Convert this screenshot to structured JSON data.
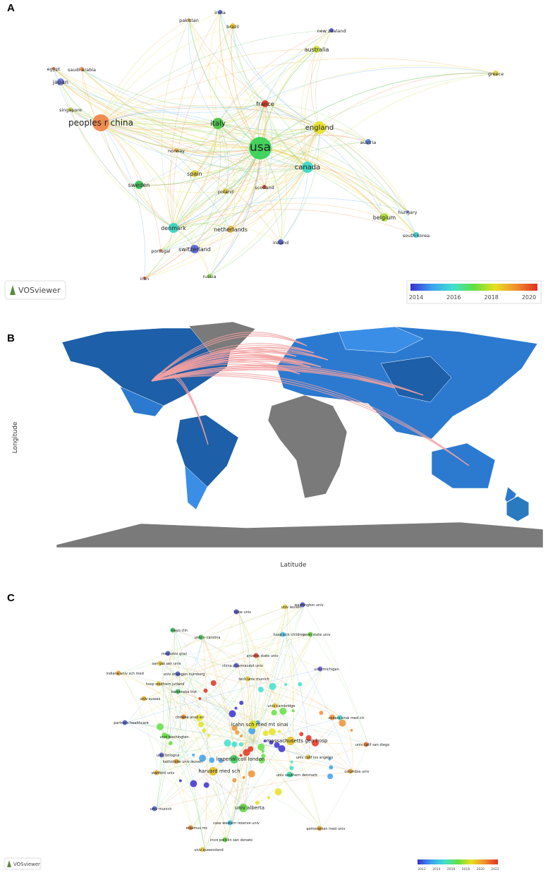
{
  "panels": [
    {
      "label": "A",
      "legend": "VOSviewer",
      "colorbar_ticks": [
        2014,
        2016,
        2018,
        2020
      ],
      "nodes": [
        {
          "label": "india",
          "color": "#4a6fe0"
        },
        {
          "label": "pakistan",
          "color": "#e0a030"
        },
        {
          "label": "brazil",
          "color": "#e0c020"
        },
        {
          "label": "new zealand",
          "color": "#4050d0"
        },
        {
          "label": "australia",
          "color": "#c8e030"
        },
        {
          "label": "egypt",
          "color": "#e06040"
        },
        {
          "label": "saudi arabia",
          "color": "#e08030"
        },
        {
          "label": "greece",
          "color": "#e0d040"
        },
        {
          "label": "japan",
          "color": "#6070e0"
        },
        {
          "label": "singapore",
          "color": "#c0d040"
        },
        {
          "label": "france",
          "color": "#e03020"
        },
        {
          "label": "peoples r china",
          "color": "#f08040"
        },
        {
          "label": "italy",
          "color": "#40c040"
        },
        {
          "label": "england",
          "color": "#e8e020"
        },
        {
          "label": "usa",
          "color": "#30d050"
        },
        {
          "label": "austria",
          "color": "#5080e0"
        },
        {
          "label": "norway",
          "color": "#e0b030"
        },
        {
          "label": "canada",
          "color": "#30d8c8"
        },
        {
          "label": "spain",
          "color": "#e0d030"
        },
        {
          "label": "sweden",
          "color": "#30c050"
        },
        {
          "label": "scotland",
          "color": "#e04030"
        },
        {
          "label": "poland",
          "color": "#e0c040"
        },
        {
          "label": "hungary",
          "color": "#7080e0"
        },
        {
          "label": "belgium",
          "color": "#b0e030"
        },
        {
          "label": "denmark",
          "color": "#30d0c0"
        },
        {
          "label": "netherlands",
          "color": "#e0b040"
        },
        {
          "label": "south korea",
          "color": "#30c8d0"
        },
        {
          "label": "ireland",
          "color": "#5060d0"
        },
        {
          "label": "switzerland",
          "color": "#5060d8"
        },
        {
          "label": "portugal",
          "color": "#e07040"
        },
        {
          "label": "russia",
          "color": "#80e040"
        },
        {
          "label": "iran",
          "color": "#e04040"
        }
      ]
    },
    {
      "label": "B",
      "y_axis_label": "Longitude",
      "x_axis_label": "Latitude"
    },
    {
      "label": "C",
      "legend": "VOSviewer",
      "colorbar_ticks": [
        2012,
        2014,
        2016,
        2018,
        2020,
        2022
      ],
      "nodes": [
        {
          "label": "univ leuven",
          "color": "#e0d040"
        },
        {
          "label": "washington univ",
          "color": "#5050d0"
        },
        {
          "label": "kobe univ",
          "color": "#5050d0"
        },
        {
          "label": "mayo clin",
          "color": "#40c060"
        },
        {
          "label": "univ n carolina",
          "color": "#40c060"
        },
        {
          "label": "hosp sick children",
          "color": "#40c0e0"
        },
        {
          "label": "penn state univ",
          "color": "#60d040"
        },
        {
          "label": "med univ graz",
          "color": "#5060d0"
        },
        {
          "label": "arizona state univ",
          "color": "#e04030"
        },
        {
          "label": "san yat sen univ",
          "color": "#e0c030"
        },
        {
          "label": "china pharmaceut univ",
          "color": "#6060d0"
        },
        {
          "label": "univ michigan",
          "color": "#7060d0"
        },
        {
          "label": "indiana univ sch med",
          "color": "#e0a030"
        },
        {
          "label": "univ erlangen nurnberg",
          "color": "#5060d0"
        },
        {
          "label": "tech univ munich",
          "color": "#e0c030"
        },
        {
          "label": "hosp southern jutland",
          "color": "#e0c030"
        },
        {
          "label": "karolinska inst",
          "color": "#40c060"
        },
        {
          "label": "univ sussex",
          "color": "#e0b030"
        },
        {
          "label": "univ cambridge",
          "color": "#e0c030"
        },
        {
          "label": "chinese acad sci",
          "color": "#e08030"
        },
        {
          "label": "icahn sch med mt sinai",
          "color": "#e0e020"
        },
        {
          "label": "cedars sinai med ctr",
          "color": "#40d0c0"
        },
        {
          "label": "univ washington",
          "color": "#60d040"
        },
        {
          "label": "massachusetts gen hosp",
          "color": "#e0c020"
        },
        {
          "label": "univ calif san diego",
          "color": "#e07030"
        },
        {
          "label": "univ bologna",
          "color": "#6060d0"
        },
        {
          "label": "katholieke univ leuven",
          "color": "#e0a030"
        },
        {
          "label": "imperial coll london",
          "color": "#40d060"
        },
        {
          "label": "univ calif los angeles",
          "color": "#e0c030"
        },
        {
          "label": "harvard med sch",
          "color": "#e0c020"
        },
        {
          "label": "stanford univ",
          "color": "#e0a030"
        },
        {
          "label": "univ southern denmark",
          "color": "#40d090"
        },
        {
          "label": "univ munich",
          "color": "#5060d0"
        },
        {
          "label": "univ alberta",
          "color": "#60d040"
        },
        {
          "label": "case western reserve univ",
          "color": "#40c0e0"
        },
        {
          "label": "erasmus mc",
          "color": "#e08030"
        },
        {
          "label": "pomeranian med univ",
          "color": "#e0a030"
        },
        {
          "label": "irccs policlin san donato",
          "color": "#60d040"
        },
        {
          "label": "univ queensland",
          "color": "#e0c030"
        },
        {
          "label": "columbia univ",
          "color": "#e0a030"
        },
        {
          "label": "partners healthcare",
          "color": "#5060d0"
        }
      ]
    }
  ]
}
